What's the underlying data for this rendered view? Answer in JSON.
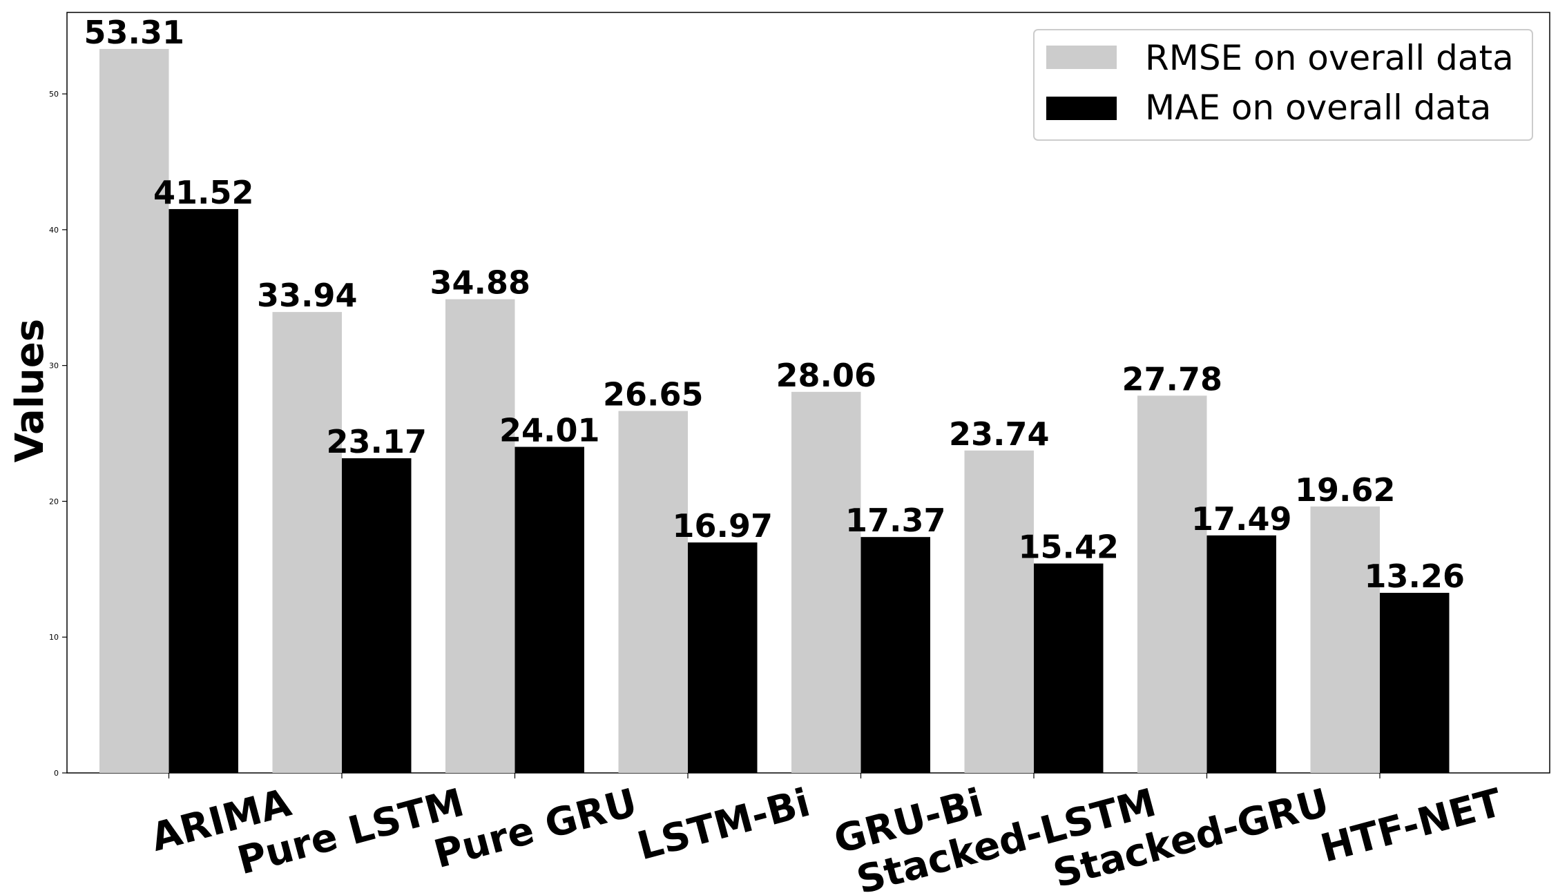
{
  "chart_data": {
    "type": "bar",
    "categories": [
      "ARIMA",
      "Pure LSTM",
      "Pure GRU",
      "LSTM-Bi",
      "GRU-Bi",
      "Stacked-LSTM",
      "Stacked-GRU",
      "HTF-NET"
    ],
    "series": [
      {
        "name": "RMSE on overall data",
        "color": "#cccccc",
        "values": [
          53.31,
          33.94,
          34.88,
          26.65,
          28.06,
          23.74,
          27.78,
          19.62
        ],
        "labels": [
          "53.31",
          "33.94",
          "34.88",
          "26.65",
          "28.06",
          "23.74",
          "27.78",
          "19.62"
        ]
      },
      {
        "name": "MAE on overall data",
        "color": "#000000",
        "values": [
          41.52,
          23.17,
          24.01,
          16.97,
          17.37,
          15.42,
          17.49,
          13.26
        ],
        "labels": [
          "41.52",
          "23.17",
          "24.01",
          "16.97",
          "17.37",
          "15.42",
          "17.49",
          "13.26"
        ]
      }
    ],
    "xlabel": "",
    "ylabel": "Values",
    "ylim": [
      0,
      56
    ],
    "yticks": [
      0,
      10,
      20,
      30,
      40,
      50
    ],
    "ytick_labels": [
      "0",
      "10",
      "20",
      "30",
      "40",
      "50"
    ],
    "grid": false,
    "legend_position": "top-right"
  }
}
